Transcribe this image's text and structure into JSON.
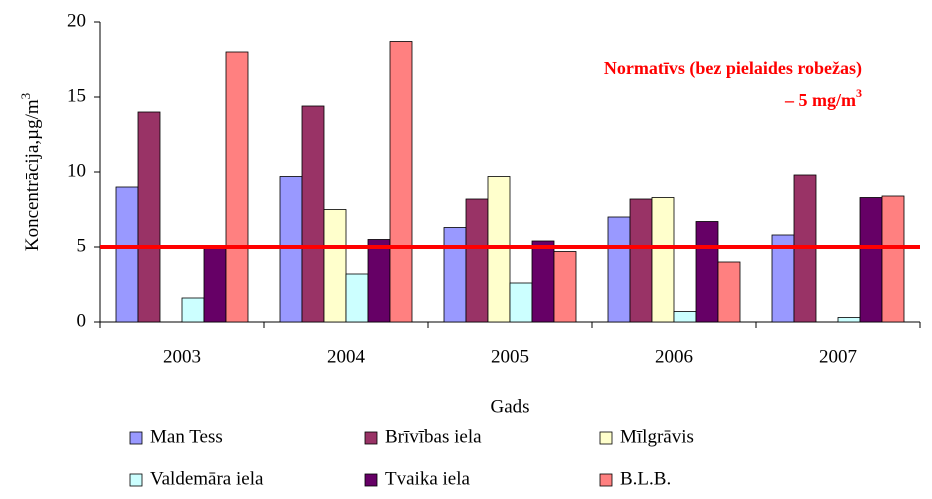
{
  "chart_data": {
    "type": "bar",
    "y_label": "Koncentrācija,µg/m",
    "y_label_sup": "3",
    "x_label": "Gads",
    "categories": [
      "2003",
      "2004",
      "2005",
      "2006",
      "2007"
    ],
    "series": [
      {
        "name": "Man Tess",
        "color": "#9999ff",
        "values": [
          9.0,
          9.7,
          6.3,
          7.0,
          5.8
        ]
      },
      {
        "name": "Brīvības iela",
        "color": "#993366",
        "values": [
          14.0,
          14.4,
          8.2,
          8.2,
          9.8
        ]
      },
      {
        "name": "Mīlgrāvis",
        "color": "#ffffcc",
        "values": [
          null,
          7.5,
          9.7,
          8.3,
          null
        ]
      },
      {
        "name": "Valdemāra iela",
        "color": "#ccffff",
        "values": [
          1.6,
          3.2,
          2.6,
          0.7,
          0.3
        ]
      },
      {
        "name": "Tvaika iela",
        "color": "#660066",
        "values": [
          5.0,
          5.5,
          5.4,
          6.7,
          8.3
        ]
      },
      {
        "name": "B.L.B.",
        "color": "#ff8080",
        "values": [
          18.0,
          18.7,
          4.7,
          4.0,
          8.4
        ]
      }
    ],
    "threshold": 5,
    "threshold_color": "#ff0000",
    "annotation": [
      "Normatīvs (bez pielaides robežas)",
      "– 5 mg/m"
    ],
    "annotation_sup": "3",
    "ylim": [
      0,
      20
    ],
    "yticks": [
      0,
      5,
      10,
      15,
      20
    ],
    "grid": false
  }
}
